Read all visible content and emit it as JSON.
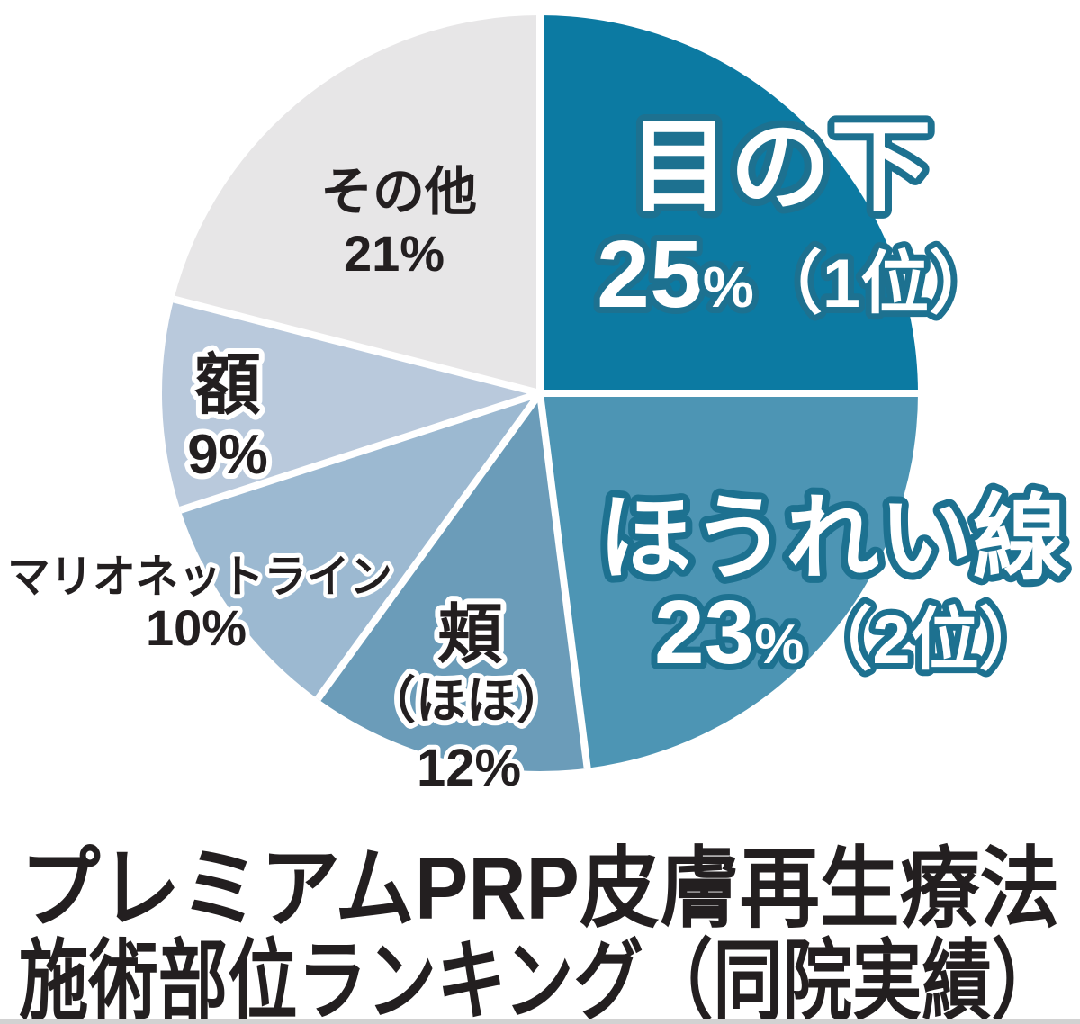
{
  "chart_data": {
    "type": "pie",
    "title": "プレミアムPRP皮膚再生療法施術部位ランキング（同院実績）",
    "unit": "%",
    "start_angle_deg": 0,
    "direction": "clockwise",
    "slices": [
      {
        "label": "目の下",
        "value": 25,
        "rank": "1位",
        "color": "#0c7aa2"
      },
      {
        "label": "ほうれい線",
        "value": 23,
        "rank": "2位",
        "color": "#4d95b4"
      },
      {
        "label": "頬（ほほ）",
        "value": 12,
        "color": "#6b9cb9"
      },
      {
        "label": "マリオネットライン",
        "value": 10,
        "color": "#9cb9d1"
      },
      {
        "label": "額",
        "value": 9,
        "color": "#b9c9dc"
      },
      {
        "label": "その他",
        "value": 21,
        "color": "#e7e6e7"
      }
    ],
    "legend": "none",
    "labels_on_chart": true
  },
  "callouts": {
    "rank1": {
      "name": "目の下",
      "value": "25",
      "unit": "%",
      "rank": "（1位）"
    },
    "rank2": {
      "name": "ほうれい線",
      "value": "23",
      "unit": "%",
      "rank": "（2位）"
    }
  },
  "labels": {
    "sonota_name": "その他",
    "sonota_pct": "21%",
    "hitai_name": "額",
    "hitai_pct": "9%",
    "marionette_name": "マリオネットライン",
    "marionette_pct": "10%",
    "hoho_name": "頬",
    "hoho_reading": "（ほほ）",
    "hoho_pct": "12%"
  },
  "title": {
    "line1": "プレミアムPRP皮膚再生療法",
    "line2": "施術部位ランキング（同院実績）"
  },
  "colors": {
    "callout_text": "#ffffff",
    "callout_stroke": "#1d7190",
    "label_text": "#231f20",
    "label_stroke": "#ffffff",
    "divider": "#ffffff",
    "bottom_strip": "#d2d2d2"
  }
}
